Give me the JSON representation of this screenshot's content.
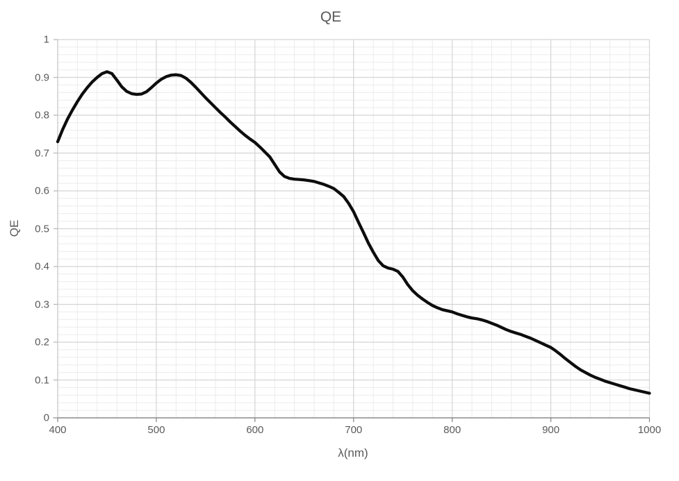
{
  "chart_data": {
    "type": "line",
    "title": "QE",
    "xlabel": "λ(nm)",
    "ylabel": "QE",
    "xlim": [
      400,
      1000
    ],
    "ylim": [
      0,
      1
    ],
    "x_tick_values": [
      400,
      500,
      600,
      700,
      800,
      900,
      1000
    ],
    "x_tick_labels": [
      "400",
      "500",
      "600",
      "700",
      "800",
      "900",
      "1000"
    ],
    "y_tick_values": [
      0,
      0.1,
      0.2,
      0.3,
      0.4,
      0.5,
      0.6,
      0.7,
      0.8,
      0.9,
      1
    ],
    "y_tick_labels": [
      "0",
      "0.1",
      "0.2",
      "0.3",
      "0.4",
      "0.5",
      "0.6",
      "0.7",
      "0.8",
      "0.9",
      "1"
    ],
    "x_minor_step": 20,
    "y_minor_step": 0.02,
    "grid": {
      "major": true,
      "minor": true
    },
    "legend": "none",
    "series": [
      {
        "name": "QE",
        "color": "#0d0d0d",
        "x": [
          400,
          405,
          410,
          415,
          420,
          425,
          430,
          435,
          440,
          445,
          450,
          455,
          460,
          465,
          470,
          475,
          480,
          485,
          490,
          495,
          500,
          505,
          510,
          515,
          520,
          525,
          530,
          535,
          540,
          545,
          550,
          555,
          560,
          565,
          570,
          575,
          580,
          585,
          590,
          595,
          600,
          605,
          610,
          615,
          620,
          625,
          630,
          635,
          640,
          645,
          650,
          655,
          660,
          665,
          670,
          675,
          680,
          685,
          690,
          695,
          700,
          705,
          710,
          715,
          720,
          725,
          730,
          735,
          740,
          745,
          750,
          755,
          760,
          765,
          770,
          775,
          780,
          785,
          790,
          795,
          800,
          805,
          810,
          815,
          820,
          825,
          830,
          835,
          840,
          845,
          850,
          855,
          860,
          865,
          870,
          875,
          880,
          885,
          890,
          895,
          900,
          905,
          910,
          915,
          920,
          925,
          930,
          935,
          940,
          945,
          950,
          955,
          960,
          965,
          970,
          975,
          980,
          985,
          990,
          995,
          1000
        ],
        "y": [
          0.73,
          0.762,
          0.79,
          0.814,
          0.836,
          0.856,
          0.873,
          0.888,
          0.9,
          0.91,
          0.915,
          0.91,
          0.893,
          0.875,
          0.863,
          0.857,
          0.855,
          0.856,
          0.862,
          0.873,
          0.885,
          0.895,
          0.902,
          0.906,
          0.907,
          0.905,
          0.898,
          0.887,
          0.874,
          0.86,
          0.846,
          0.833,
          0.82,
          0.807,
          0.795,
          0.782,
          0.77,
          0.758,
          0.747,
          0.737,
          0.728,
          0.716,
          0.703,
          0.69,
          0.67,
          0.65,
          0.638,
          0.633,
          0.631,
          0.63,
          0.629,
          0.627,
          0.625,
          0.621,
          0.617,
          0.612,
          0.606,
          0.596,
          0.585,
          0.567,
          0.545,
          0.517,
          0.49,
          0.462,
          0.438,
          0.416,
          0.402,
          0.396,
          0.393,
          0.387,
          0.372,
          0.352,
          0.336,
          0.324,
          0.314,
          0.305,
          0.297,
          0.291,
          0.286,
          0.283,
          0.28,
          0.275,
          0.271,
          0.267,
          0.264,
          0.262,
          0.259,
          0.255,
          0.25,
          0.245,
          0.239,
          0.233,
          0.228,
          0.224,
          0.22,
          0.215,
          0.21,
          0.204,
          0.198,
          0.192,
          0.186,
          0.177,
          0.167,
          0.156,
          0.146,
          0.136,
          0.127,
          0.12,
          0.113,
          0.107,
          0.102,
          0.097,
          0.093,
          0.089,
          0.085,
          0.081,
          0.077,
          0.074,
          0.071,
          0.068,
          0.065
        ]
      }
    ]
  },
  "colors": {
    "text": "#595959",
    "curve": "#0d0d0d",
    "grid_major": "#d4d4d4",
    "grid_minor": "#ebebeb",
    "axis_x": "#8a8a8a",
    "axis_y": "#c9c9c9",
    "tick_x": "#8a8a8a",
    "tick_y": "#b5b5b5",
    "background": "#ffffff"
  }
}
